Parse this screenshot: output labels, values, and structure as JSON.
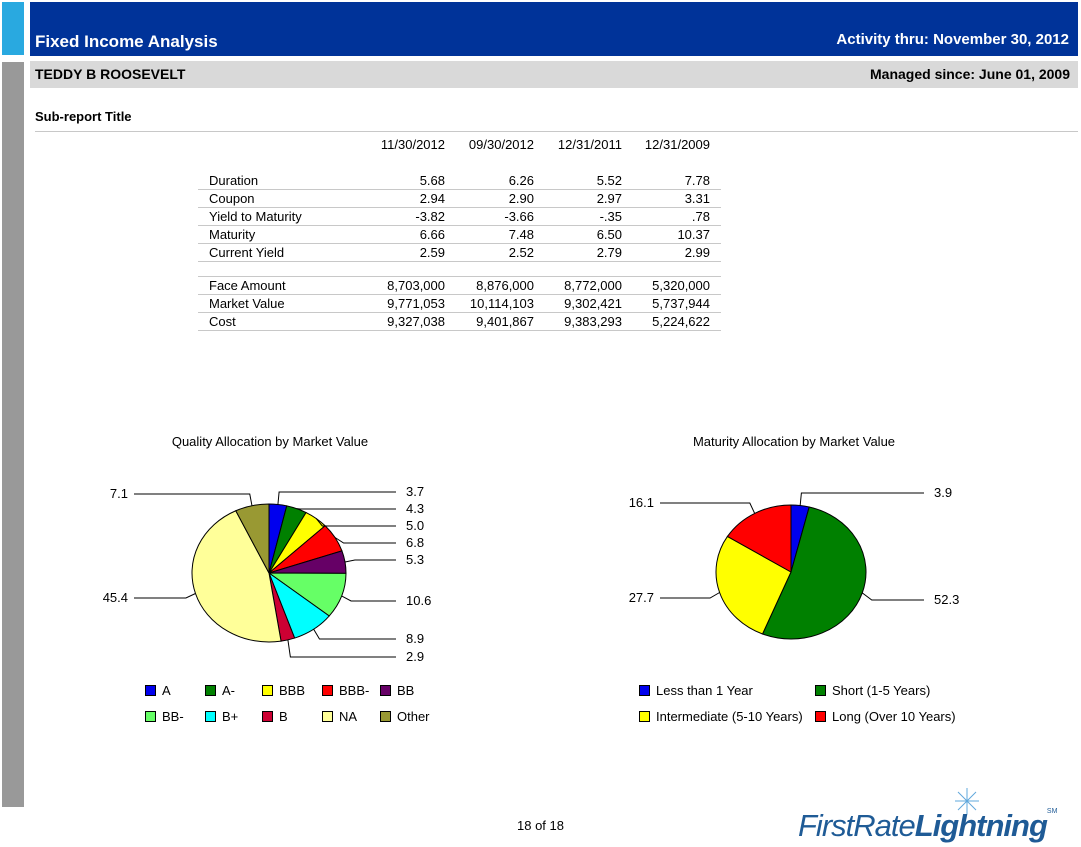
{
  "header": {
    "title": "Fixed Income Analysis",
    "activity": "Activity thru:  November 30, 2012",
    "client_name": "TEDDY B ROOSEVELT",
    "managed_since": "Managed since:  June 01, 2009"
  },
  "subreport_title": "Sub-report Title",
  "metrics_table": {
    "columns": [
      "11/30/2012",
      "09/30/2012",
      "12/31/2011",
      "12/31/2009"
    ],
    "group1": [
      {
        "label": "Duration",
        "values": [
          "5.68",
          "6.26",
          "5.52",
          "7.78"
        ]
      },
      {
        "label": "Coupon",
        "values": [
          "2.94",
          "2.90",
          "2.97",
          "3.31"
        ]
      },
      {
        "label": "Yield to Maturity",
        "values": [
          "-3.82",
          "-3.66",
          "-.35",
          ".78"
        ]
      },
      {
        "label": "Maturity",
        "values": [
          "6.66",
          "7.48",
          "6.50",
          "10.37"
        ]
      },
      {
        "label": "Current Yield",
        "values": [
          "2.59",
          "2.52",
          "2.79",
          "2.99"
        ]
      }
    ],
    "group2": [
      {
        "label": "Face Amount",
        "values": [
          "8,703,000",
          "8,876,000",
          "8,772,000",
          "5,320,000"
        ]
      },
      {
        "label": "Market Value",
        "values": [
          "9,771,053",
          "10,114,103",
          "9,302,421",
          "5,737,944"
        ]
      },
      {
        "label": "Cost",
        "values": [
          "9,327,038",
          "9,401,867",
          "9,383,293",
          "5,224,622"
        ]
      }
    ]
  },
  "chart_data": [
    {
      "type": "pie",
      "title": "Quality Allocation by Market Value",
      "labels": [
        "A",
        "A-",
        "BBB",
        "BBB-",
        "BB",
        "BB-",
        "B+",
        "B",
        "NA",
        "Other"
      ],
      "values": [
        3.7,
        4.3,
        5.0,
        6.8,
        5.3,
        10.6,
        8.9,
        2.9,
        45.4,
        7.1
      ],
      "value_labels": [
        "3.7",
        "4.3",
        "5.0",
        "6.8",
        "5.3",
        "10.6",
        "8.9",
        "2.9",
        "45.4",
        "7.1"
      ],
      "colors": [
        "#0000ee",
        "#008000",
        "#ffff00",
        "#ff0000",
        "#660066",
        "#66ff66",
        "#00ffff",
        "#cc0033",
        "#ffff99",
        "#999933"
      ],
      "legend_placement": "bottom"
    },
    {
      "type": "pie",
      "title": "Maturity Allocation by Market Value",
      "labels": [
        "Less than 1 Year",
        "Short (1-5 Years)",
        "Intermediate (5-10 Years)",
        "Long (Over 10 Years)"
      ],
      "values": [
        3.9,
        52.3,
        27.7,
        16.1
      ],
      "value_labels": [
        "3.9",
        "52.3",
        "27.7",
        "16.1"
      ],
      "colors": [
        "#0000ee",
        "#008000",
        "#ffff00",
        "#ff0000"
      ],
      "legend_placement": "bottom"
    }
  ],
  "footer": {
    "page": "18 of 18",
    "logo_first": "FirstRate",
    "logo_second": "Lightning",
    "logo_mark": "SM"
  }
}
